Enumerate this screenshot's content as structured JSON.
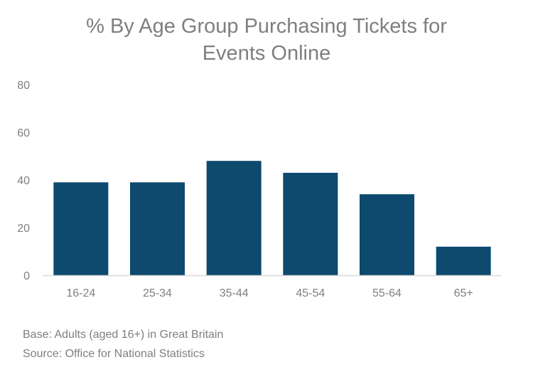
{
  "chart_data": {
    "type": "bar",
    "title_lines": [
      "% By Age Group Purchasing Tickets for",
      "Events Online"
    ],
    "categories": [
      "16-24",
      "25-34",
      "35-44",
      "45-54",
      "55-64",
      "65+"
    ],
    "values": [
      39,
      39,
      48,
      43,
      34,
      12
    ],
    "ylim": [
      0,
      80
    ],
    "yticks": [
      0,
      20,
      40,
      60,
      80
    ],
    "xlabel": "",
    "ylabel": "",
    "grid": false,
    "bar_color": "#0d4a6e",
    "axis_color": "#d9d9d9"
  },
  "footnotes": {
    "base": "Base: Adults (aged 16+) in Great Britain",
    "source": "Source: Office for National Statistics"
  }
}
